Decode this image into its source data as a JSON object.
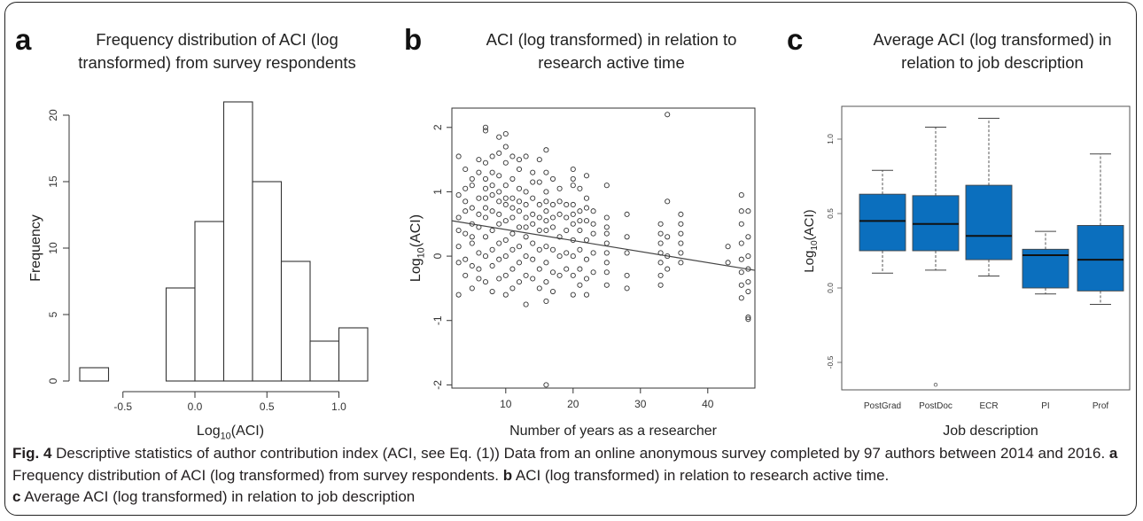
{
  "panels": {
    "a": {
      "letter": "a",
      "title_line1": "Frequency distribution of ACI (log",
      "title_line2": "transformed) from survey respondents"
    },
    "b": {
      "letter": "b",
      "title_line1": "ACI (log transformed) in relation to",
      "title_line2": "research active time"
    },
    "c": {
      "letter": "c",
      "title_line1": "Average ACI (log transformed) in",
      "title_line2": "relation to job description"
    }
  },
  "chart_data": [
    {
      "panel": "a",
      "type": "bar",
      "subtype": "histogram",
      "xlabel": "Log10(ACI)",
      "ylabel": "Frequency",
      "bins": [
        {
          "from": -0.8,
          "to": -0.6,
          "count": 1
        },
        {
          "from": -0.6,
          "to": -0.4,
          "count": 0
        },
        {
          "from": -0.4,
          "to": -0.2,
          "count": 0
        },
        {
          "from": -0.2,
          "to": 0.0,
          "count": 7
        },
        {
          "from": 0.0,
          "to": 0.2,
          "count": 12
        },
        {
          "from": 0.2,
          "to": 0.4,
          "count": 21
        },
        {
          "from": 0.4,
          "to": 0.6,
          "count": 15
        },
        {
          "from": 0.6,
          "to": 0.8,
          "count": 9
        },
        {
          "from": 0.8,
          "to": 1.0,
          "count": 3
        },
        {
          "from": 1.0,
          "to": 1.2,
          "count": 4
        }
      ],
      "xlim": [
        -0.8,
        1.2
      ],
      "ylim": [
        0,
        21
      ],
      "x_ticks": [
        "-0.5",
        "0.0",
        "0.5",
        "1.0"
      ],
      "y_ticks": [
        "0",
        "5",
        "10",
        "15",
        "20"
      ]
    },
    {
      "panel": "b",
      "type": "scatter",
      "xlabel": "Number of years as a researcher",
      "ylabel": "Log10(ACI)",
      "xlim": [
        2,
        47
      ],
      "ylim": [
        -2.05,
        2.3
      ],
      "x_ticks": [
        "10",
        "20",
        "30",
        "40"
      ],
      "y_ticks": [
        "-2",
        "-1",
        "0",
        "1",
        "2"
      ],
      "fit_line": {
        "x": [
          2,
          47
        ],
        "y": [
          0.55,
          -0.22
        ]
      },
      "points": [
        [
          3,
          1.55
        ],
        [
          3,
          0.6
        ],
        [
          3,
          0.15
        ],
        [
          3,
          -0.1
        ],
        [
          3,
          -0.6
        ],
        [
          3,
          0.95
        ],
        [
          3,
          0.4
        ],
        [
          4,
          1.35
        ],
        [
          4,
          0.85
        ],
        [
          4,
          0.35
        ],
        [
          4,
          -0.05
        ],
        [
          4,
          0.7
        ],
        [
          4,
          -0.3
        ],
        [
          4,
          1.05
        ],
        [
          5,
          1.1
        ],
        [
          5,
          0.5
        ],
        [
          5,
          0.2
        ],
        [
          5,
          -0.15
        ],
        [
          5,
          -0.5
        ],
        [
          5,
          0.75
        ],
        [
          5,
          0.3
        ],
        [
          5,
          1.2
        ],
        [
          6,
          1.5
        ],
        [
          6,
          0.9
        ],
        [
          6,
          0.45
        ],
        [
          6,
          0.05
        ],
        [
          6,
          -0.35
        ],
        [
          6,
          1.3
        ],
        [
          6,
          0.65
        ],
        [
          6,
          -0.2
        ],
        [
          7,
          2.0
        ],
        [
          7,
          1.95
        ],
        [
          7,
          1.45
        ],
        [
          7,
          1.2
        ],
        [
          7,
          0.9
        ],
        [
          7,
          0.6
        ],
        [
          7,
          0.3
        ],
        [
          7,
          0.0
        ],
        [
          7,
          -0.4
        ],
        [
          7,
          0.75
        ],
        [
          7,
          1.05
        ],
        [
          8,
          1.55
        ],
        [
          8,
          1.1
        ],
        [
          8,
          0.7
        ],
        [
          8,
          0.4
        ],
        [
          8,
          0.1
        ],
        [
          8,
          -0.15
        ],
        [
          8,
          -0.55
        ],
        [
          8,
          0.95
        ],
        [
          8,
          1.3
        ],
        [
          9,
          1.85
        ],
        [
          9,
          1.6
        ],
        [
          9,
          1.25
        ],
        [
          9,
          0.85
        ],
        [
          9,
          0.5
        ],
        [
          9,
          0.2
        ],
        [
          9,
          -0.05
        ],
        [
          9,
          -0.35
        ],
        [
          9,
          0.65
        ],
        [
          9,
          1.0
        ],
        [
          10,
          1.9
        ],
        [
          10,
          1.45
        ],
        [
          10,
          1.1
        ],
        [
          10,
          0.8
        ],
        [
          10,
          0.55
        ],
        [
          10,
          0.25
        ],
        [
          10,
          0.0
        ],
        [
          10,
          -0.3
        ],
        [
          10,
          -0.6
        ],
        [
          10,
          0.9
        ],
        [
          10,
          1.7
        ],
        [
          11,
          1.55
        ],
        [
          11,
          1.2
        ],
        [
          11,
          0.9
        ],
        [
          11,
          0.6
        ],
        [
          11,
          0.35
        ],
        [
          11,
          0.1
        ],
        [
          11,
          -0.2
        ],
        [
          11,
          -0.5
        ],
        [
          11,
          0.75
        ],
        [
          12,
          1.35
        ],
        [
          12,
          1.05
        ],
        [
          12,
          0.7
        ],
        [
          12,
          0.45
        ],
        [
          12,
          0.15
        ],
        [
          12,
          -0.1
        ],
        [
          12,
          -0.4
        ],
        [
          12,
          0.85
        ],
        [
          12,
          1.5
        ],
        [
          13,
          1.55
        ],
        [
          13,
          1.0
        ],
        [
          13,
          0.6
        ],
        [
          13,
          0.3
        ],
        [
          13,
          0.0
        ],
        [
          13,
          -0.3
        ],
        [
          13,
          -0.75
        ],
        [
          13,
          0.45
        ],
        [
          13,
          0.8
        ],
        [
          14,
          1.3
        ],
        [
          14,
          0.9
        ],
        [
          14,
          0.5
        ],
        [
          14,
          0.2
        ],
        [
          14,
          -0.05
        ],
        [
          14,
          -0.35
        ],
        [
          14,
          0.65
        ],
        [
          14,
          1.15
        ],
        [
          15,
          1.5
        ],
        [
          15,
          1.15
        ],
        [
          15,
          0.8
        ],
        [
          15,
          0.4
        ],
        [
          15,
          0.1
        ],
        [
          15,
          -0.2
        ],
        [
          15,
          -0.5
        ],
        [
          15,
          0.6
        ],
        [
          16,
          1.65
        ],
        [
          16,
          1.3
        ],
        [
          16,
          1.0
        ],
        [
          16,
          0.7
        ],
        [
          16,
          0.4
        ],
        [
          16,
          0.15
        ],
        [
          16,
          -0.1
        ],
        [
          16,
          -0.4
        ],
        [
          16,
          -0.7
        ],
        [
          16,
          -2.0
        ],
        [
          16,
          0.55
        ],
        [
          16,
          0.85
        ],
        [
          17,
          1.2
        ],
        [
          17,
          0.8
        ],
        [
          17,
          0.45
        ],
        [
          17,
          0.1
        ],
        [
          17,
          -0.25
        ],
        [
          17,
          -0.55
        ],
        [
          17,
          0.6
        ],
        [
          18,
          1.05
        ],
        [
          18,
          0.65
        ],
        [
          18,
          0.3
        ],
        [
          18,
          0.0
        ],
        [
          18,
          -0.3
        ],
        [
          18,
          0.85
        ],
        [
          19,
          0.8
        ],
        [
          19,
          0.4
        ],
        [
          19,
          0.05
        ],
        [
          19,
          -0.2
        ],
        [
          19,
          0.6
        ],
        [
          20,
          1.35
        ],
        [
          20,
          1.1
        ],
        [
          20,
          0.8
        ],
        [
          20,
          0.5
        ],
        [
          20,
          0.25
        ],
        [
          20,
          0.0
        ],
        [
          20,
          -0.3
        ],
        [
          20,
          -0.6
        ],
        [
          20,
          0.65
        ],
        [
          20,
          1.2
        ],
        [
          21,
          1.05
        ],
        [
          21,
          0.7
        ],
        [
          21,
          0.4
        ],
        [
          21,
          0.1
        ],
        [
          21,
          -0.2
        ],
        [
          21,
          -0.45
        ],
        [
          21,
          0.55
        ],
        [
          22,
          1.25
        ],
        [
          22,
          0.9
        ],
        [
          22,
          0.55
        ],
        [
          22,
          0.25
        ],
        [
          22,
          -0.05
        ],
        [
          22,
          -0.35
        ],
        [
          22,
          -0.6
        ],
        [
          22,
          0.75
        ],
        [
          23,
          0.7
        ],
        [
          23,
          0.35
        ],
        [
          23,
          0.05
        ],
        [
          23,
          -0.25
        ],
        [
          23,
          0.5
        ],
        [
          25,
          1.1
        ],
        [
          25,
          0.6
        ],
        [
          25,
          0.45
        ],
        [
          25,
          0.35
        ],
        [
          25,
          0.2
        ],
        [
          25,
          0.05
        ],
        [
          25,
          -0.1
        ],
        [
          25,
          -0.25
        ],
        [
          25,
          -0.45
        ],
        [
          28,
          0.65
        ],
        [
          28,
          0.3
        ],
        [
          28,
          0.05
        ],
        [
          28,
          -0.3
        ],
        [
          28,
          -0.5
        ],
        [
          33,
          0.5
        ],
        [
          33,
          0.35
        ],
        [
          33,
          0.2
        ],
        [
          33,
          0.05
        ],
        [
          33,
          -0.1
        ],
        [
          33,
          -0.3
        ],
        [
          33,
          -0.45
        ],
        [
          34,
          2.2
        ],
        [
          34,
          0.85
        ],
        [
          34,
          0.3
        ],
        [
          34,
          0.0
        ],
        [
          34,
          -0.2
        ],
        [
          36,
          0.65
        ],
        [
          36,
          0.5
        ],
        [
          36,
          0.35
        ],
        [
          36,
          0.2
        ],
        [
          36,
          0.05
        ],
        [
          36,
          -0.1
        ],
        [
          43,
          0.15
        ],
        [
          43,
          -0.1
        ],
        [
          45,
          0.95
        ],
        [
          45,
          0.7
        ],
        [
          45,
          0.5
        ],
        [
          45,
          0.2
        ],
        [
          45,
          -0.05
        ],
        [
          45,
          -0.25
        ],
        [
          45,
          -0.45
        ],
        [
          45,
          -0.65
        ],
        [
          46,
          0.7
        ],
        [
          46,
          0.3
        ],
        [
          46,
          0.0
        ],
        [
          46,
          -0.2
        ],
        [
          46,
          -0.4
        ],
        [
          46,
          -0.55
        ],
        [
          46,
          -0.95
        ],
        [
          46,
          -0.98
        ]
      ]
    },
    {
      "panel": "c",
      "type": "boxplot",
      "xlabel": "Job description",
      "ylabel": "Log10(ACI)",
      "ylim": [
        -0.7,
        1.2
      ],
      "y_ticks": [
        "-0.5",
        "0.0",
        "0.5",
        "1.0"
      ],
      "box_color": "#0b6fbe",
      "categories": [
        "PostGrad",
        "PostDoc",
        "ECR",
        "PI",
        "Prof"
      ],
      "boxes": [
        {
          "name": "PostGrad",
          "whisker_low": 0.1,
          "q1": 0.25,
          "median": 0.45,
          "q3": 0.63,
          "whisker_high": 0.79,
          "outliers": []
        },
        {
          "name": "PostDoc",
          "whisker_low": 0.12,
          "q1": 0.25,
          "median": 0.43,
          "q3": 0.62,
          "whisker_high": 1.08,
          "outliers": [
            -0.65
          ]
        },
        {
          "name": "ECR",
          "whisker_low": 0.08,
          "q1": 0.19,
          "median": 0.35,
          "q3": 0.69,
          "whisker_high": 1.14,
          "outliers": []
        },
        {
          "name": "PI",
          "whisker_low": -0.04,
          "q1": 0.0,
          "median": 0.22,
          "q3": 0.26,
          "whisker_high": 0.38,
          "outliers": []
        },
        {
          "name": "Prof",
          "whisker_low": -0.11,
          "q1": -0.02,
          "median": 0.19,
          "q3": 0.42,
          "whisker_high": 0.9,
          "outliers": []
        }
      ]
    }
  ],
  "caption": {
    "fig_label": "Fig. 4",
    "intro": " Descriptive statistics of author contribution index (ACI, see Eq. (1)) Data from an online anonymous survey completed by 97 authors between 2014 and 2016. ",
    "a_label": "a",
    "a_text": " Frequency distribution of ACI (log transformed) from survey respondents. ",
    "b_label": "b",
    "b_text": " ACI (log transformed) in relation to research active time. ",
    "c_label": "c",
    "c_text": " Average ACI (log transformed) in relation to job description"
  }
}
